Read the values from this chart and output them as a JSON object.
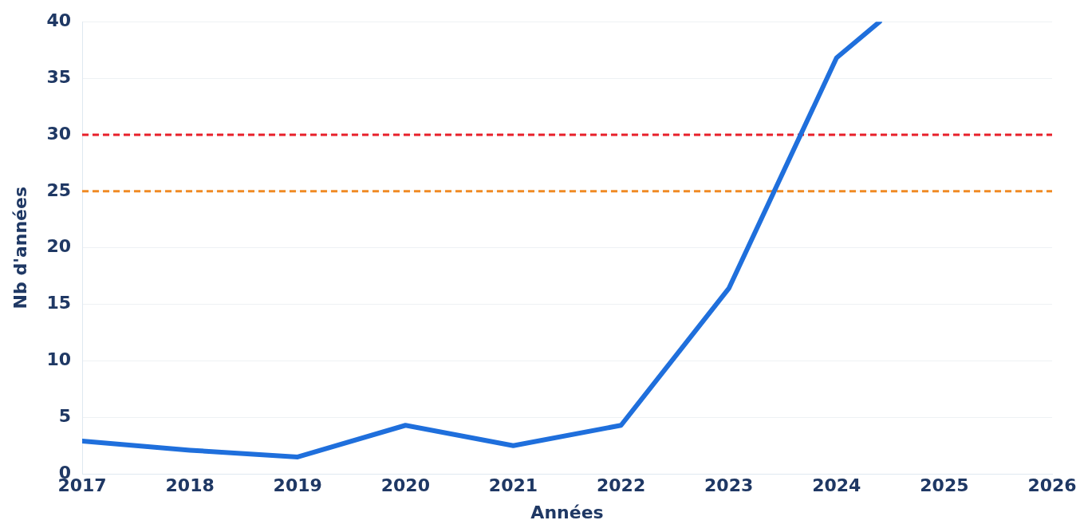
{
  "chart_data": {
    "type": "line",
    "xlabel": "Années",
    "ylabel": "Nb d'années",
    "series": [
      {
        "color": "#1f6fdc",
        "x": [
          2017,
          2018,
          2019,
          2020,
          2021,
          2022,
          2023,
          2024,
          2024.4
        ],
        "values": [
          2.9,
          2.1,
          1.5,
          4.3,
          2.5,
          4.3,
          16.4,
          36.8,
          40
        ]
      }
    ],
    "xlim": [
      2017,
      2026
    ],
    "xticks": [
      2017,
      2018,
      2019,
      2020,
      2021,
      2022,
      2023,
      2024,
      2025,
      2026
    ],
    "ylim": [
      0,
      40
    ],
    "yticks": [
      0,
      5,
      10,
      15,
      20,
      25,
      30,
      35,
      40
    ],
    "ref_lines": [
      {
        "axis": "y",
        "value": 30,
        "color": "#e8202a",
        "line_style": "dashed"
      },
      {
        "axis": "y",
        "value": 25,
        "color": "#f08a24",
        "line_style": "dashed"
      }
    ],
    "grid": "y",
    "legend": false,
    "marker": "none",
    "line_style": "solid"
  }
}
